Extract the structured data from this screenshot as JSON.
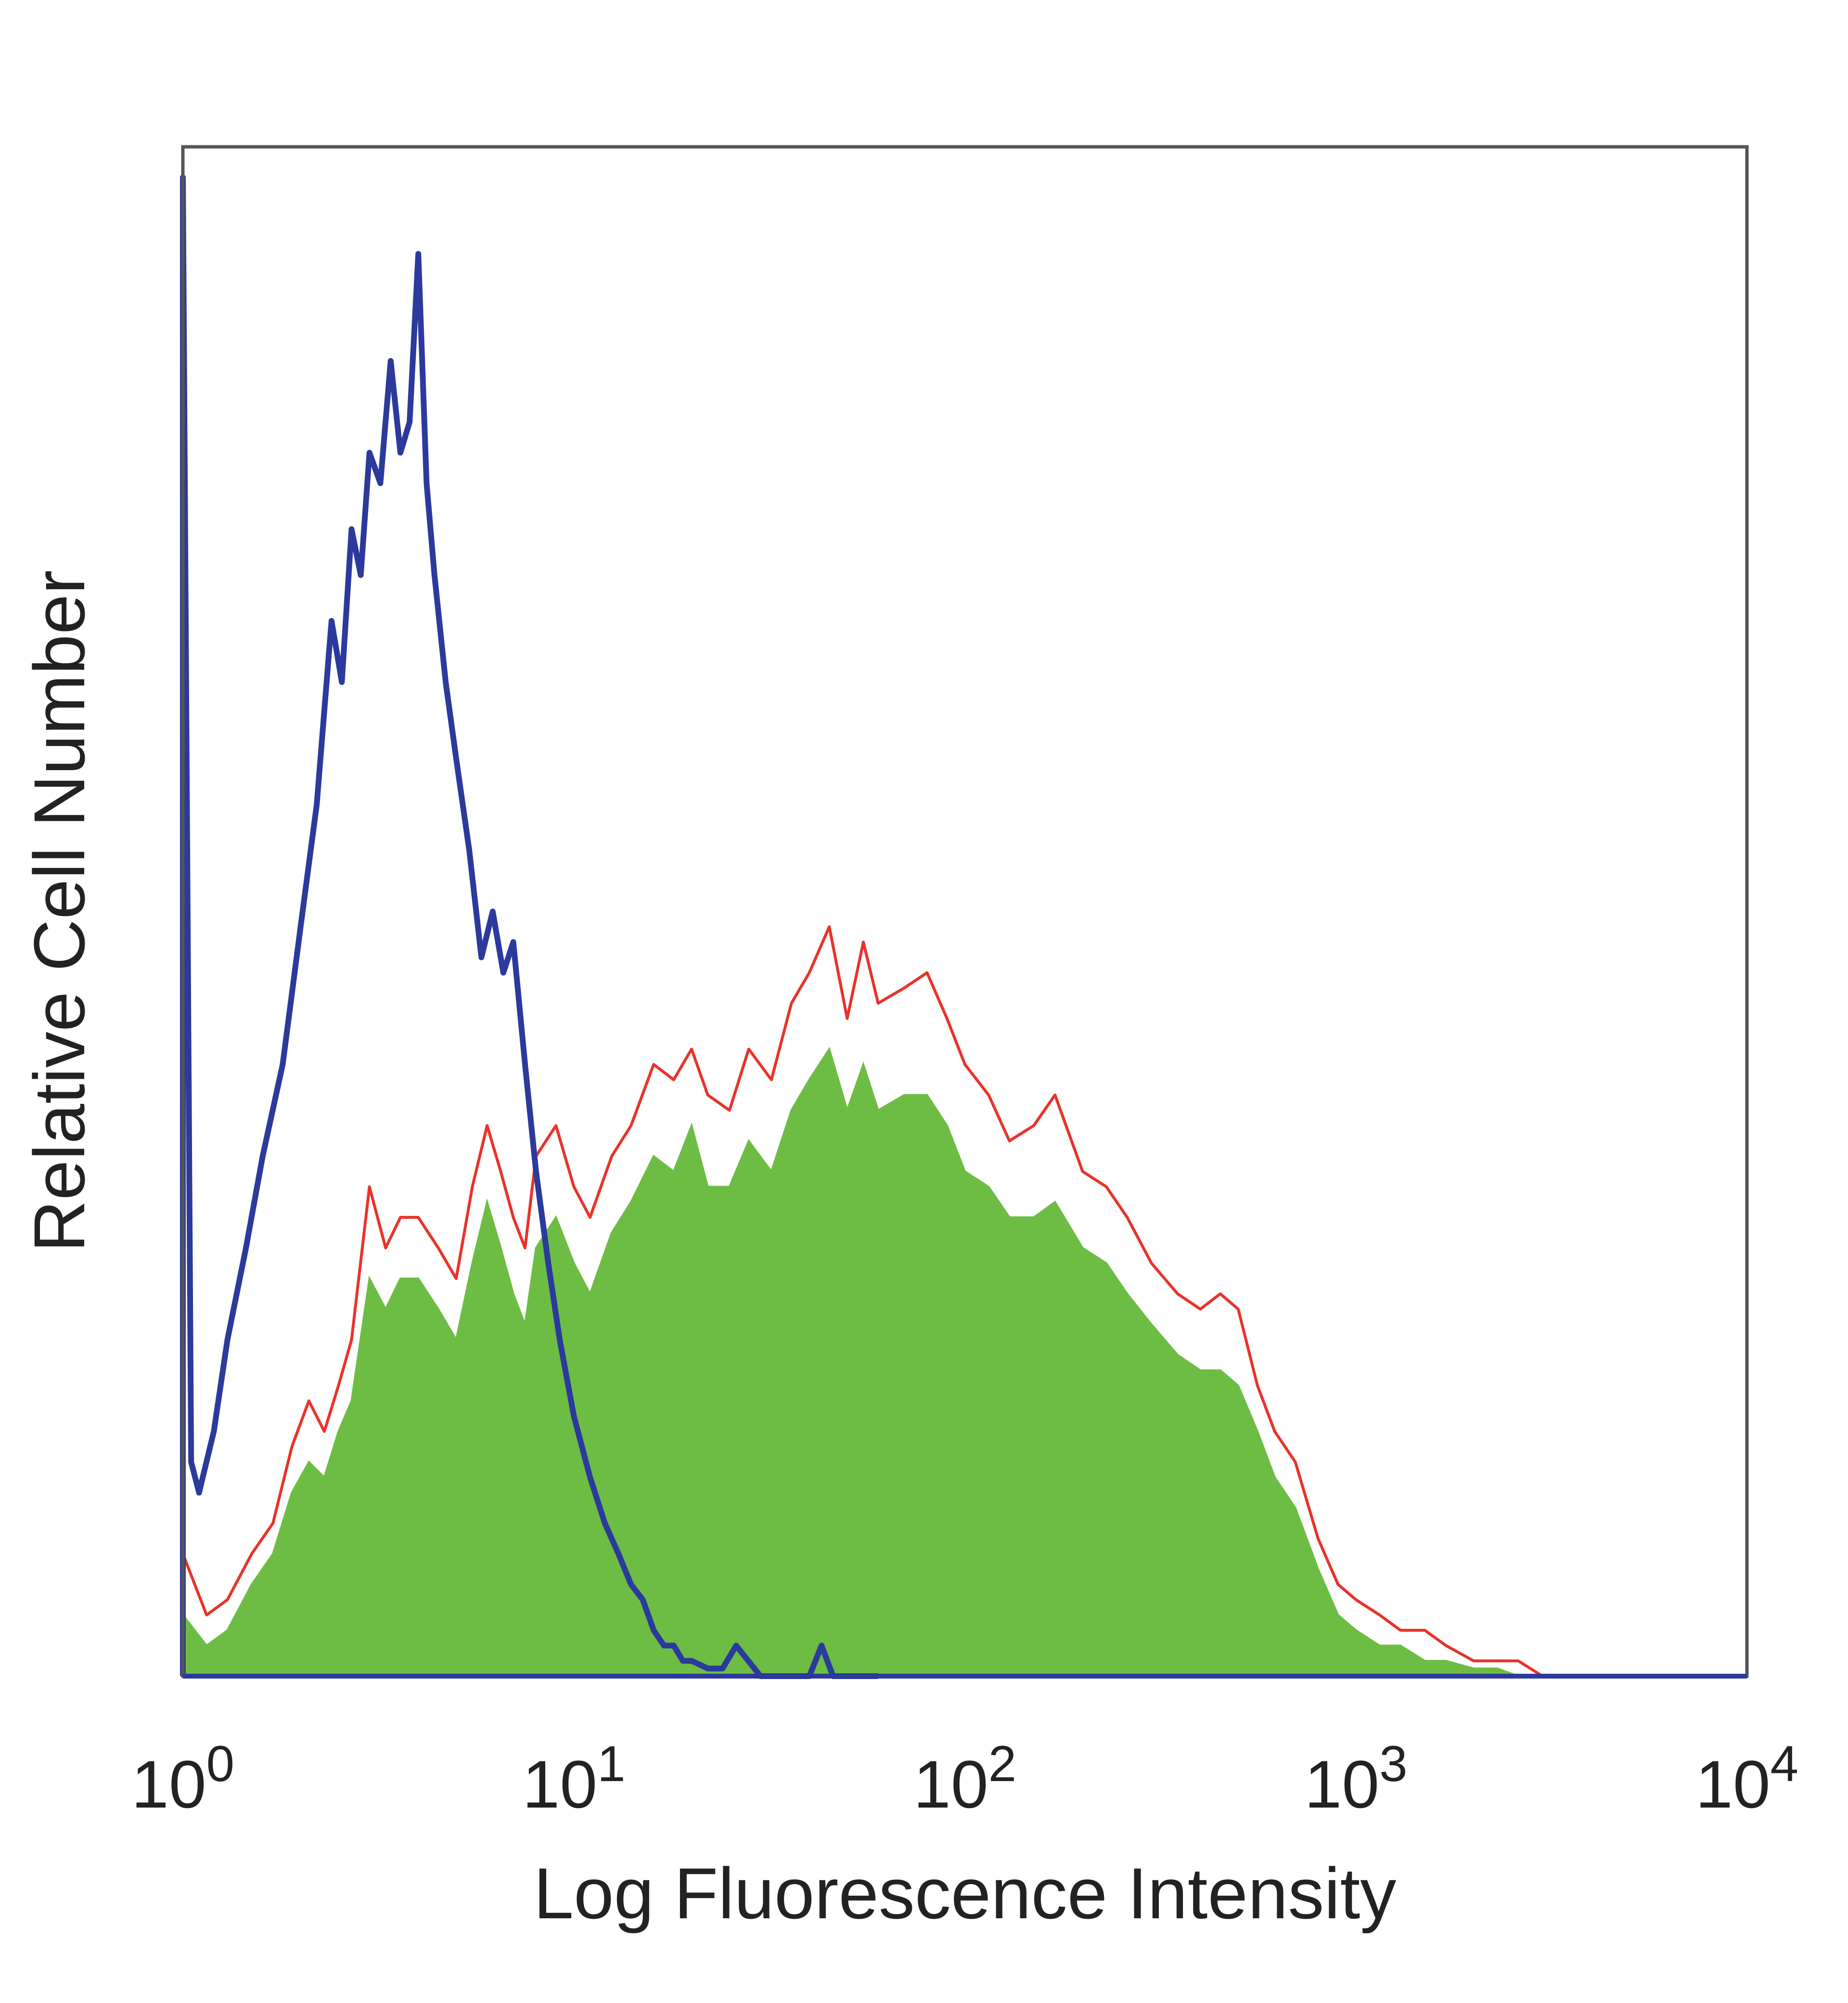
{
  "chart_data": {
    "type": "area",
    "title": "",
    "xlabel": "Log Fluorescence Intensity",
    "ylabel": "Relative Cell Number",
    "x_scale": "log",
    "xlim": [
      1,
      10000
    ],
    "ylim": [
      0,
      100
    ],
    "y_ticks_shown": false,
    "grid": false,
    "legend": "none",
    "x_ticks": [
      {
        "value": 1,
        "base": "10",
        "exp": "0"
      },
      {
        "value": 10,
        "base": "10",
        "exp": "1"
      },
      {
        "value": 100,
        "base": "10",
        "exp": "2"
      },
      {
        "value": 1000,
        "base": "10",
        "exp": "3"
      },
      {
        "value": 10000,
        "base": "10",
        "exp": "4"
      }
    ],
    "series": [
      {
        "style": "outline",
        "color": "#2b3a9c",
        "x": [
          1.0,
          1.05,
          1.1,
          1.2,
          1.3,
          1.45,
          1.6,
          1.8,
          2.0,
          2.2,
          2.4,
          2.55,
          2.7,
          2.85,
          3.0,
          3.2,
          3.4,
          3.6,
          3.8,
          4.0,
          4.2,
          4.4,
          4.7,
          5.0,
          5.4,
          5.8,
          6.2,
          6.6,
          7.0,
          7.5,
          8.0,
          8.6,
          9.2,
          10.0,
          11.0,
          12.0,
          13.0,
          14.0,
          15.0,
          16.0,
          17.0,
          18.0,
          19.0,
          20.0,
          22.0,
          24.0,
          26.0,
          30.0,
          35.0,
          40.0,
          43.0,
          46.0,
          50.0,
          60.0
        ],
        "y": [
          98,
          14,
          12,
          16,
          22,
          28,
          34,
          40,
          49,
          57,
          69,
          65,
          75,
          72,
          80,
          78,
          86,
          80,
          82,
          93,
          78,
          72,
          65,
          60,
          54,
          47,
          50,
          46,
          48,
          40,
          33,
          27,
          22,
          17,
          13,
          10,
          8,
          6,
          5,
          3,
          2,
          2,
          1,
          1,
          0.5,
          0.5,
          2,
          0,
          0,
          0,
          2,
          0,
          0,
          0
        ]
      },
      {
        "style": "outline",
        "color": "#e8332a",
        "x": [
          1.0,
          1.15,
          1.3,
          1.5,
          1.7,
          1.9,
          2.1,
          2.3,
          2.5,
          2.7,
          3.0,
          3.3,
          3.6,
          4.0,
          4.5,
          5.0,
          5.5,
          6.0,
          6.5,
          7.0,
          7.5,
          8.0,
          9.0,
          10.0,
          11.0,
          12.5,
          14.0,
          16.0,
          18.0,
          20.0,
          22.0,
          25.0,
          28.0,
          32.0,
          36.0,
          40.0,
          45.0,
          50.0,
          55.0,
          60.0,
          70.0,
          80.0,
          90.0,
          100.0,
          115.0,
          130.0,
          150.0,
          170.0,
          200.0,
          230.0,
          260.0,
          300.0,
          350.0,
          400.0,
          450.0,
          500.0,
          560.0,
          620.0,
          700.0,
          800.0,
          900.0,
          1000.0,
          1150.0,
          1300.0,
          1500.0,
          1700.0,
          2000.0,
          2300.0,
          2600.0,
          3000.0
        ],
        "y": [
          8,
          4,
          5,
          8,
          10,
          15,
          18,
          16,
          19,
          22,
          32,
          28,
          30,
          30,
          28,
          26,
          32,
          36,
          33,
          30,
          28,
          34,
          36,
          32,
          30,
          34,
          36,
          40,
          39,
          41,
          38,
          37,
          41,
          39,
          44,
          46,
          49,
          43,
          48,
          44,
          45,
          46,
          43,
          40,
          38,
          35,
          36,
          38,
          33,
          32,
          30,
          27,
          25,
          24,
          25,
          24,
          19,
          16,
          14,
          9,
          6,
          5,
          4,
          3,
          3,
          2,
          1,
          1,
          1,
          0
        ]
      },
      {
        "style": "filled",
        "color": "#6dbd45",
        "x": [
          1.0,
          1.15,
          1.3,
          1.5,
          1.7,
          1.9,
          2.1,
          2.3,
          2.5,
          2.7,
          3.0,
          3.3,
          3.6,
          4.0,
          4.5,
          5.0,
          5.5,
          6.0,
          6.5,
          7.0,
          7.5,
          8.0,
          9.0,
          10.0,
          11.0,
          12.5,
          14.0,
          16.0,
          18.0,
          20.0,
          22.0,
          25.0,
          28.0,
          32.0,
          36.0,
          40.0,
          45.0,
          50.0,
          55.0,
          60.0,
          70.0,
          80.0,
          90.0,
          100.0,
          115.0,
          130.0,
          150.0,
          170.0,
          200.0,
          230.0,
          260.0,
          300.0,
          350.0,
          400.0,
          450.0,
          500.0,
          560.0,
          620.0,
          700.0,
          800.0,
          900.0,
          1000.0,
          1150.0,
          1300.0,
          1500.0,
          1700.0,
          2000.0,
          2300.0,
          2600.0,
          3000.0
        ],
        "y": [
          4,
          2,
          3,
          6,
          8,
          12,
          14,
          13,
          16,
          18,
          26,
          24,
          26,
          26,
          24,
          22,
          27,
          31,
          28,
          25,
          23,
          28,
          30,
          27,
          25,
          29,
          31,
          34,
          33,
          36,
          32,
          32,
          35,
          33,
          37,
          39,
          41,
          37,
          40,
          37,
          38,
          38,
          36,
          33,
          32,
          30,
          30,
          31,
          28,
          27,
          25,
          23,
          21,
          20,
          20,
          19,
          16,
          13,
          11,
          7,
          4,
          3,
          2,
          2,
          1,
          1,
          0.5,
          0.5,
          0,
          0
        ]
      }
    ]
  }
}
